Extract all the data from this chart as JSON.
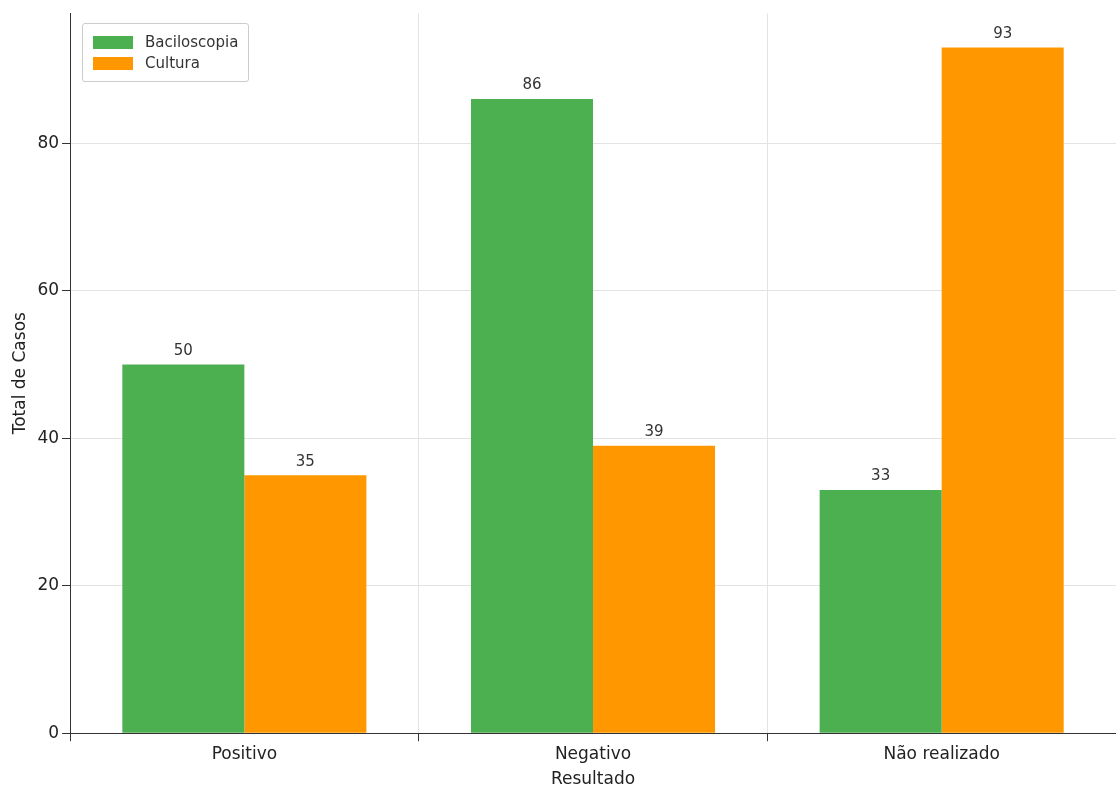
{
  "chart_data": {
    "type": "bar",
    "xlabel": "Resultado",
    "ylabel": "Total de Casos",
    "categories": [
      "Positivo",
      "Negativo",
      "Não realizado"
    ],
    "series": [
      {
        "name": "Baciloscopia",
        "color": "#4caf50",
        "values": [
          50,
          86,
          33
        ]
      },
      {
        "name": "Cultura",
        "color": "#ff9800",
        "values": [
          35,
          39,
          93
        ]
      }
    ],
    "ylim": [
      0,
      97.65
    ],
    "yticks": [
      0,
      20,
      40,
      60,
      80
    ],
    "grid": true,
    "legend": "top left",
    "data_labels": true
  }
}
